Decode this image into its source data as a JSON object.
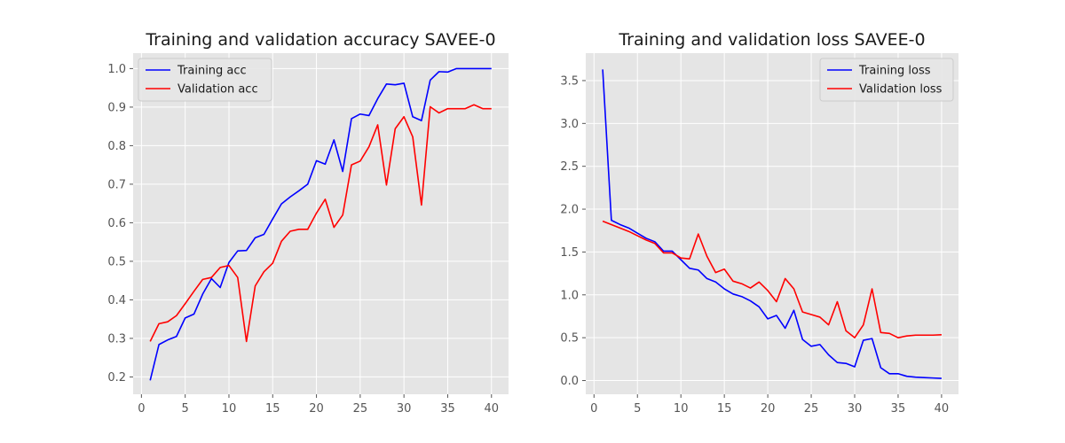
{
  "chart_data": [
    {
      "type": "line",
      "title": "Training and validation accuracy SAVEE-0",
      "xlabel": "",
      "ylabel": "",
      "xlim": [
        -0.95,
        41.95
      ],
      "ylim": [
        0.155,
        1.04
      ],
      "xticks": [
        0,
        5,
        10,
        15,
        20,
        25,
        30,
        35,
        40
      ],
      "yticks": [
        0.2,
        0.3,
        0.4,
        0.5,
        0.6,
        0.7,
        0.8,
        0.9,
        1.0
      ],
      "ytick_labels": [
        "0.2",
        "0.3",
        "0.4",
        "0.5",
        "0.6",
        "0.7",
        "0.8",
        "0.9",
        "1.0"
      ],
      "grid": true,
      "legend_position": "top-left",
      "x": [
        1,
        2,
        3,
        4,
        5,
        6,
        7,
        8,
        9,
        10,
        11,
        12,
        13,
        14,
        15,
        16,
        17,
        18,
        19,
        20,
        21,
        22,
        23,
        24,
        25,
        26,
        27,
        28,
        29,
        30,
        31,
        32,
        33,
        34,
        35,
        36,
        37,
        38,
        39,
        40
      ],
      "series": [
        {
          "name": "Training acc",
          "color": "#0000ff",
          "values": [
            0.191,
            0.284,
            0.296,
            0.305,
            0.353,
            0.363,
            0.415,
            0.455,
            0.432,
            0.497,
            0.527,
            0.528,
            0.561,
            0.57,
            0.61,
            0.649,
            0.667,
            0.683,
            0.7,
            0.761,
            0.752,
            0.815,
            0.733,
            0.87,
            0.882,
            0.878,
            0.922,
            0.96,
            0.958,
            0.962,
            0.875,
            0.865,
            0.97,
            0.992,
            0.991,
            1.0,
            1.0,
            1.0,
            1.0,
            1.0
          ]
        },
        {
          "name": "Validation acc",
          "color": "#ff0000",
          "values": [
            0.292,
            0.338,
            0.343,
            0.359,
            0.39,
            0.422,
            0.453,
            0.458,
            0.484,
            0.489,
            0.458,
            0.292,
            0.436,
            0.473,
            0.495,
            0.552,
            0.578,
            0.583,
            0.583,
            0.625,
            0.661,
            0.588,
            0.62,
            0.75,
            0.76,
            0.797,
            0.854,
            0.698,
            0.844,
            0.875,
            0.823,
            0.646,
            0.901,
            0.885,
            0.896,
            0.896,
            0.896,
            0.906,
            0.896,
            0.896
          ]
        }
      ]
    },
    {
      "type": "line",
      "title": "Training and validation loss SAVEE-0",
      "xlabel": "",
      "ylabel": "",
      "xlim": [
        -0.95,
        41.95
      ],
      "ylim": [
        -0.16,
        3.82
      ],
      "xticks": [
        0,
        5,
        10,
        15,
        20,
        25,
        30,
        35,
        40
      ],
      "yticks": [
        0.0,
        0.5,
        1.0,
        1.5,
        2.0,
        2.5,
        3.0,
        3.5
      ],
      "ytick_labels": [
        "0.0",
        "0.5",
        "1.0",
        "1.5",
        "2.0",
        "2.5",
        "3.0",
        "3.5"
      ],
      "grid": true,
      "legend_position": "top-right",
      "x": [
        1,
        2,
        3,
        4,
        5,
        6,
        7,
        8,
        9,
        10,
        11,
        12,
        13,
        14,
        15,
        16,
        17,
        18,
        19,
        20,
        21,
        22,
        23,
        24,
        25,
        26,
        27,
        28,
        29,
        30,
        31,
        32,
        33,
        34,
        35,
        36,
        37,
        38,
        39,
        40
      ],
      "series": [
        {
          "name": "Training loss",
          "color": "#0000ff",
          "values": [
            3.63,
            1.87,
            1.82,
            1.78,
            1.72,
            1.66,
            1.62,
            1.51,
            1.51,
            1.41,
            1.31,
            1.29,
            1.19,
            1.15,
            1.07,
            1.01,
            0.98,
            0.93,
            0.86,
            0.72,
            0.76,
            0.61,
            0.82,
            0.48,
            0.4,
            0.42,
            0.3,
            0.21,
            0.2,
            0.16,
            0.47,
            0.49,
            0.15,
            0.08,
            0.08,
            0.05,
            0.04,
            0.035,
            0.03,
            0.025
          ]
        },
        {
          "name": "Validation loss",
          "color": "#ff0000",
          "values": [
            1.86,
            1.82,
            1.78,
            1.74,
            1.69,
            1.64,
            1.6,
            1.49,
            1.49,
            1.43,
            1.42,
            1.71,
            1.45,
            1.26,
            1.3,
            1.16,
            1.13,
            1.08,
            1.15,
            1.05,
            0.92,
            1.19,
            1.07,
            0.8,
            0.77,
            0.74,
            0.65,
            0.92,
            0.58,
            0.5,
            0.65,
            1.07,
            0.56,
            0.55,
            0.5,
            0.52,
            0.53,
            0.53,
            0.53,
            0.535
          ]
        }
      ]
    }
  ]
}
